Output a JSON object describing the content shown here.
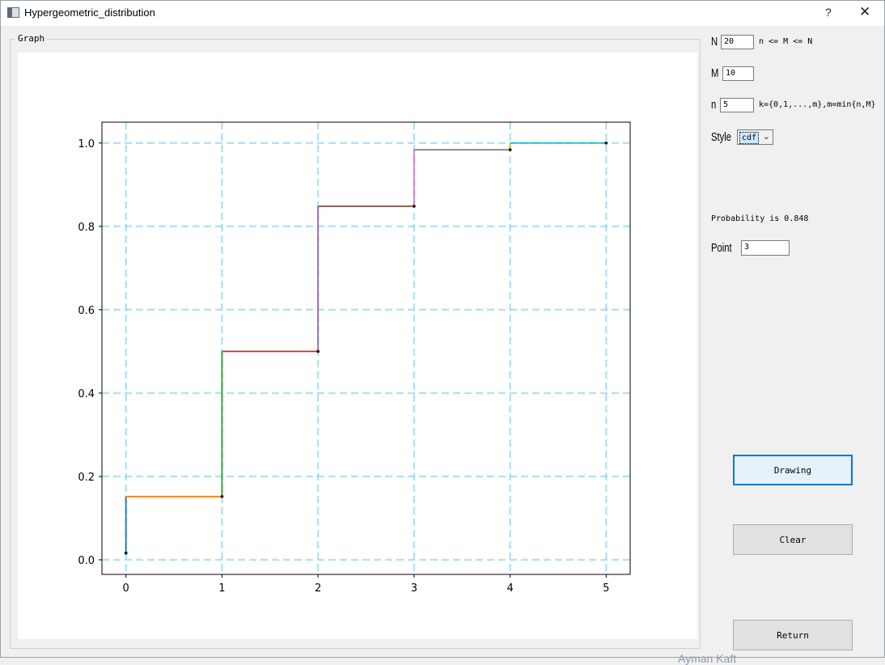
{
  "window": {
    "title": "Hypergeometric_distribution",
    "help_label": "?",
    "close_label": "✕"
  },
  "graph_group": {
    "label": "Graph"
  },
  "controls": {
    "N": {
      "label": "N",
      "value": "20",
      "hint": "n <= M <= N"
    },
    "M": {
      "label": "M",
      "value": "10"
    },
    "n": {
      "label": "n",
      "value": "5",
      "hint": "k={0,1,...,m},m=min{n,M}"
    },
    "style": {
      "label": "Style",
      "selected": "cdf"
    },
    "probability_text": "Probability is 0.848",
    "point": {
      "label": "Point",
      "value": "3"
    }
  },
  "buttons": {
    "drawing": "Drawing",
    "clear": "Clear",
    "return": "Return"
  },
  "watermark": "Ayman Kaft",
  "chart_data": {
    "type": "line",
    "subtype": "step-cdf",
    "x": [
      0,
      1,
      2,
      3,
      4,
      5
    ],
    "y": [
      0.0163,
      0.1517,
      0.5,
      0.8483,
      0.9837,
      1.0
    ],
    "xlim": [
      -0.25,
      5.25
    ],
    "ylim": [
      -0.035,
      1.05
    ],
    "xticks": [
      "0",
      "1",
      "2",
      "3",
      "4",
      "5"
    ],
    "yticks": [
      "0.0",
      "0.2",
      "0.4",
      "0.6",
      "0.8",
      "1.0"
    ],
    "grid": true,
    "grid_color": "#87ceeb",
    "vertical_colors": [
      "#1f77b4",
      "#2ca02c",
      "#9467bd",
      "#e377c2",
      "#bcbd22"
    ],
    "horizontal_colors": [
      "#ff7f0e",
      "#d62728",
      "#8c564b",
      "#7f7f7f",
      "#17becf"
    ],
    "point_color": "#1a1a1a"
  }
}
